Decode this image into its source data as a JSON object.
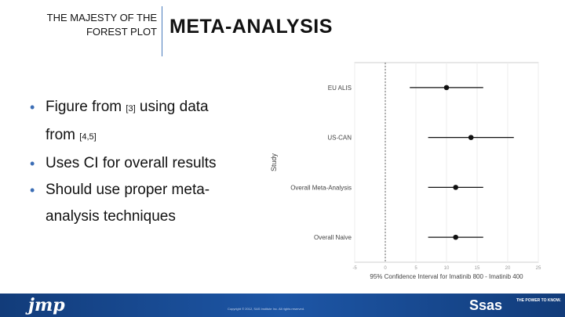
{
  "header": {
    "subtitle_line1": "THE MAJESTY OF THE",
    "subtitle_line2": "FOREST PLOT",
    "title": "META-ANALYSIS"
  },
  "bullets": [
    {
      "pre": "Figure from ",
      "cite": "[3]",
      "post": " using data from ",
      "cite2": "[4,5]"
    },
    {
      "text": "Uses CI for overall results"
    },
    {
      "text": "Should use proper meta-analysis techniques"
    }
  ],
  "bullet_text": {
    "b1_part1": "Figure from ",
    "b1_cite1": "[3]",
    "b1_part2": " using data",
    "b1_part3": "from ",
    "b1_cite2": "[4,5]",
    "b2": "Uses CI for overall results",
    "b3_line1": "Should use proper meta-",
    "b3_line2": "analysis techniques"
  },
  "chart_data": {
    "type": "scatter",
    "subtype": "forest",
    "categories": [
      "EU ALIS",
      "US-CAN",
      "Overall Meta-Analysis",
      "Overall Naive"
    ],
    "point": [
      10,
      14,
      11.5,
      11.5
    ],
    "ci_low": [
      4,
      7,
      7,
      7
    ],
    "ci_high": [
      16,
      21,
      16,
      16
    ],
    "xlim": [
      -5,
      25
    ],
    "xticks": [
      -5,
      0,
      5,
      10,
      15,
      20,
      25
    ],
    "ref_line": 0,
    "xlabel": "95% Confidence Interval for Imatinib 800 - Imatinib 400",
    "ylabel": "Study",
    "grid": true
  },
  "footer": {
    "jmp_logo": "jmp",
    "copyright": "Copyright © 2012, SAS Institute Inc. All rights reserved.",
    "sas_logo": "Ssas",
    "sas_tag": "THE POWER TO KNOW."
  },
  "colors": {
    "accent": "#3b6db5",
    "footer": "#1d56a6"
  }
}
